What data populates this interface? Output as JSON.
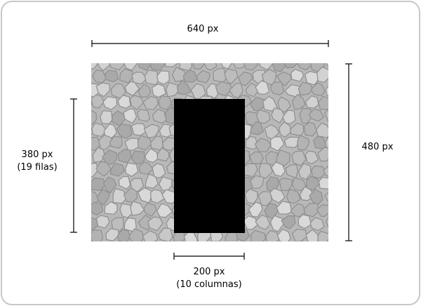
{
  "diagram": {
    "width_label": "640 px",
    "height_label": "480 px",
    "rows_label_line1": "380 px",
    "rows_label_line2": "(19 filas)",
    "cols_label_line1": "200 px",
    "cols_label_line2": "(10 columnas)",
    "texture_description": "stone-texture",
    "colors": {
      "stone_light": "#d2d2d2",
      "stone_mid": "#bdbdbd",
      "stone_dark": "#a9a9a9",
      "mortar": "#8f8f8f",
      "cutout": "#000000",
      "frame": "#c8c8c8",
      "dimension_line": "#000000"
    }
  }
}
